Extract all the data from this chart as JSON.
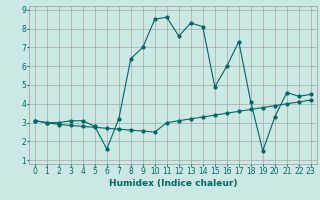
{
  "xlabel": "Humidex (Indice chaleur)",
  "bg_color": "#cce8e4",
  "grid_color": "#999999",
  "line_color": "#006666",
  "xlim": [
    -0.5,
    23.5
  ],
  "ylim": [
    0.8,
    9.2
  ],
  "xticks": [
    0,
    1,
    2,
    3,
    4,
    5,
    6,
    7,
    8,
    9,
    10,
    11,
    12,
    13,
    14,
    15,
    16,
    17,
    18,
    19,
    20,
    21,
    22,
    23
  ],
  "yticks": [
    1,
    2,
    3,
    4,
    5,
    6,
    7,
    8,
    9
  ],
  "line1_x": [
    0,
    1,
    2,
    3,
    4,
    5,
    6,
    7,
    8,
    9,
    10,
    11,
    12,
    13,
    14,
    15,
    16,
    17,
    18,
    19,
    20,
    21,
    22,
    23
  ],
  "line1_y": [
    3.1,
    3.0,
    3.0,
    3.1,
    3.1,
    2.8,
    1.6,
    3.2,
    6.4,
    7.0,
    8.5,
    8.6,
    7.6,
    8.3,
    8.1,
    4.9,
    6.0,
    7.3,
    4.1,
    1.5,
    3.3,
    4.6,
    4.4,
    4.5
  ],
  "line2_x": [
    0,
    1,
    2,
    3,
    4,
    5,
    6,
    7,
    8,
    9,
    10,
    11,
    12,
    13,
    14,
    15,
    16,
    17,
    18,
    19,
    20,
    21,
    22,
    23
  ],
  "line2_y": [
    3.1,
    3.0,
    2.9,
    2.85,
    2.8,
    2.75,
    2.7,
    2.65,
    2.6,
    2.55,
    2.5,
    3.0,
    3.1,
    3.2,
    3.3,
    3.4,
    3.5,
    3.6,
    3.7,
    3.8,
    3.9,
    4.0,
    4.1,
    4.2
  ],
  "xlabel_fontsize": 6.5,
  "tick_fontsize": 5.5
}
